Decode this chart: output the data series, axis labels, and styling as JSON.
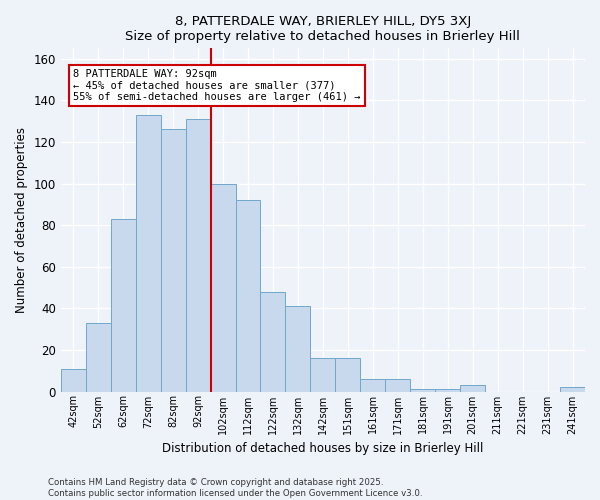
{
  "title": "8, PATTERDALE WAY, BRIERLEY HILL, DY5 3XJ",
  "subtitle": "Size of property relative to detached houses in Brierley Hill",
  "xlabel": "Distribution of detached houses by size in Brierley Hill",
  "ylabel": "Number of detached properties",
  "categories": [
    "42sqm",
    "52sqm",
    "62sqm",
    "72sqm",
    "82sqm",
    "92sqm",
    "102sqm",
    "112sqm",
    "122sqm",
    "132sqm",
    "142sqm",
    "151sqm",
    "161sqm",
    "171sqm",
    "181sqm",
    "191sqm",
    "201sqm",
    "211sqm",
    "221sqm",
    "231sqm",
    "241sqm"
  ],
  "values": [
    11,
    33,
    83,
    133,
    126,
    131,
    100,
    92,
    48,
    41,
    16,
    16,
    6,
    6,
    1,
    1,
    3,
    0,
    0,
    0,
    2
  ],
  "bar_color": "#c9d9ed",
  "bar_edge_color": "#6fa8cc",
  "reference_line_index": 5,
  "annotation_line1": "8 PATTERDALE WAY: 92sqm",
  "annotation_line2": "← 45% of detached houses are smaller (377)",
  "annotation_line3": "55% of semi-detached houses are larger (461) →",
  "annotation_box_color": "#ffffff",
  "annotation_box_edge_color": "#cc0000",
  "footnote1": "Contains HM Land Registry data © Crown copyright and database right 2025.",
  "footnote2": "Contains public sector information licensed under the Open Government Licence v3.0.",
  "ylim": [
    0,
    165
  ],
  "background_color": "#eef2f9",
  "grid_color": "#ffffff"
}
